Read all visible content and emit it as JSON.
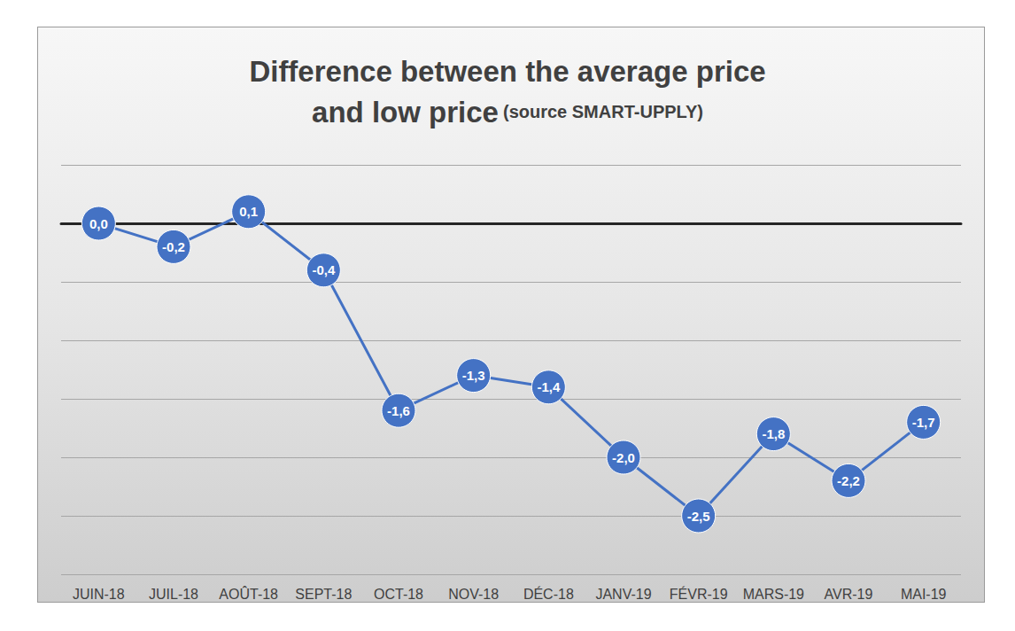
{
  "chart_data": {
    "type": "line",
    "title": "Difference between the average price\nand low price",
    "subtitle": "(source SMART-UPPLY)",
    "categories": [
      "JUIN-18",
      "JUIL-18",
      "AOÛT-18",
      "SEPT-18",
      "OCT-18",
      "NOV-18",
      "DÉC-18",
      "JANV-19",
      "FÉVR-19",
      "MARS-19",
      "AVR-19",
      "MAI-19"
    ],
    "values": [
      0.0,
      -0.2,
      0.1,
      -0.4,
      -1.6,
      -1.3,
      -1.4,
      -2.0,
      -2.5,
      -1.8,
      -2.2,
      -1.7
    ],
    "value_labels": [
      "0,0",
      "-0,2",
      "0,1",
      "-0,4",
      "-1,6",
      "-1,3",
      "-1,4",
      "-2,0",
      "-2,5",
      "-1,8",
      "-2,2",
      "-1,7"
    ],
    "color": "#4472c4",
    "marker": "circle",
    "ylim": [
      -3,
      0.5
    ],
    "yticks": [
      -3,
      -2.5,
      -2,
      -1.5,
      -1,
      -0.5,
      0,
      0.5
    ],
    "grid": true,
    "data_labels": true,
    "tick_labels": "x"
  }
}
